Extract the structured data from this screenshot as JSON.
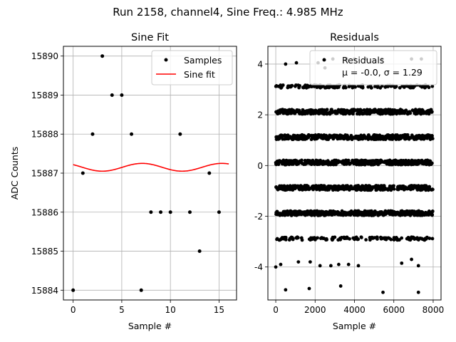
{
  "figure_title": "Run 2158, channel4, Sine Freq.: 4.985 MHz",
  "chart_data": [
    {
      "type": "scatter+line",
      "title": "Sine Fit",
      "xlabel": "Sample #",
      "ylabel": "ADC Counts",
      "xlim": [
        -1.0,
        16.8
      ],
      "ylim": [
        15883.75,
        15890.25
      ],
      "xticks": [
        0,
        5,
        10,
        15
      ],
      "yticks": [
        15884,
        15885,
        15886,
        15887,
        15888,
        15889,
        15890
      ],
      "grid": true,
      "legend": {
        "position": "top-right",
        "entries": [
          {
            "label": "Samples",
            "marker": "dot",
            "color": "#000000"
          },
          {
            "label": "Sine fit",
            "marker": "line",
            "color": "#ff0000"
          }
        ]
      },
      "samples": {
        "x": [
          0,
          1,
          2,
          3,
          4,
          5,
          6,
          7,
          8,
          9,
          10,
          11,
          12,
          13,
          14,
          15
        ],
        "y": [
          15884,
          15887,
          15888,
          15890,
          15889,
          15889,
          15888,
          15884,
          15886,
          15886,
          15886,
          15888,
          15886,
          15885,
          15887,
          15886
        ]
      },
      "fit": {
        "amplitude": 0.1,
        "offset": 15887.15,
        "period": 8.2,
        "center_x": 3.0,
        "x_range": [
          0,
          16
        ],
        "color": "#ff0000"
      }
    },
    {
      "type": "scatter",
      "title": "Residuals",
      "xlabel": "Sample #",
      "xlim": [
        -400,
        8400
      ],
      "ylim": [
        -5.3,
        4.7
      ],
      "xticks": [
        0,
        2000,
        4000,
        6000,
        8000
      ],
      "yticks": [
        -4,
        -2,
        0,
        2,
        4
      ],
      "grid": true,
      "legend": {
        "position": "top-right",
        "entries": [
          {
            "label": "Residuals",
            "marker": "dot",
            "color": "#000000"
          }
        ],
        "annotation": "μ = -0.0, σ = 1.29"
      },
      "bands": [
        {
          "level": 2.12,
          "density": "dense"
        },
        {
          "level": 1.12,
          "density": "dense"
        },
        {
          "level": 0.12,
          "density": "dense"
        },
        {
          "level": -0.88,
          "density": "dense"
        },
        {
          "level": -1.88,
          "density": "dense"
        },
        {
          "level": 3.12,
          "density": "medium"
        },
        {
          "level": -2.88,
          "density": "medium"
        }
      ],
      "sparse_points": {
        "x": [
          500,
          1050,
          2150,
          2500,
          2900,
          3600,
          4000,
          4600,
          5400,
          6900,
          7400,
          250,
          1150,
          1750,
          2250,
          2800,
          3200,
          3700,
          4200,
          6400,
          6900,
          7250,
          0,
          500,
          1700,
          3300,
          5450,
          7250
        ],
        "y": [
          4.0,
          4.05,
          4.05,
          3.85,
          4.2,
          4.2,
          4.2,
          4.2,
          4.2,
          4.2,
          4.2,
          -3.9,
          -3.8,
          -3.8,
          -3.95,
          -3.95,
          -3.9,
          -3.9,
          -3.95,
          -3.85,
          -3.7,
          -3.95,
          -4.0,
          -4.9,
          -4.85,
          -4.75,
          -5.0,
          -5.0
        ]
      },
      "statistics": {
        "mean": -0.0,
        "sigma": 1.29
      }
    }
  ]
}
